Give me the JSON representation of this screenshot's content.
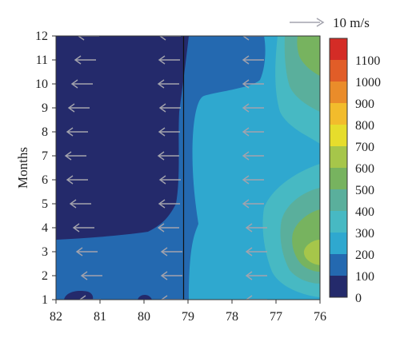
{
  "chart_data": {
    "type": "heatmap",
    "title": "",
    "xlabel": "",
    "ylabel": "Months",
    "x_ticks": [
      "82",
      "81",
      "80",
      "79",
      "78",
      "77",
      "76"
    ],
    "y_ticks": [
      "1",
      "2",
      "3",
      "4",
      "5",
      "6",
      "7",
      "8",
      "9",
      "10",
      "11",
      "12"
    ],
    "xlim": [
      82,
      76
    ],
    "ylim": [
      1,
      12
    ],
    "colorbar": {
      "ticks": [
        "0",
        "100",
        "200",
        "300",
        "400",
        "500",
        "600",
        "700",
        "800",
        "900",
        "1000",
        "1100"
      ],
      "colors": [
        "#242a6b",
        "#2469b0",
        "#2fa8cf",
        "#47b9c3",
        "#5aaf9c",
        "#77b35f",
        "#a6c64a",
        "#e6dd2c",
        "#f2bc2c",
        "#ea8c2a",
        "#e15d28",
        "#d42c26"
      ]
    },
    "vertical_line_x": 79.1,
    "reference_vector": {
      "label": "10 m/s"
    },
    "grid": false,
    "legend": "colorbar-right"
  }
}
